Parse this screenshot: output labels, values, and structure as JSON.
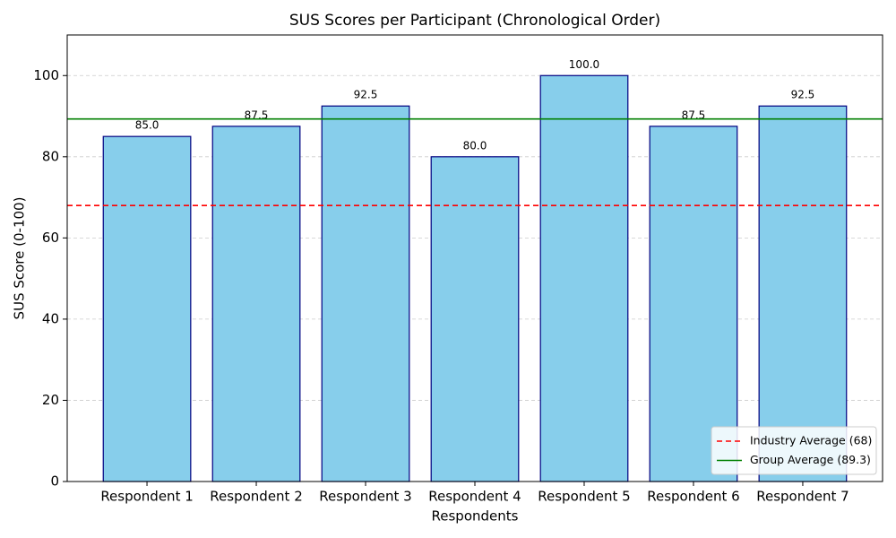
{
  "chart_data": {
    "type": "bar",
    "title": "SUS Scores per Participant (Chronological Order)",
    "x_label": "Respondents",
    "y_label": "SUS Score (0-100)",
    "categories": [
      "Respondent 1",
      "Respondent 2",
      "Respondent 3",
      "Respondent 4",
      "Respondent 5",
      "Respondent 6",
      "Respondent 7"
    ],
    "values": [
      85,
      87.5,
      92.5,
      80,
      100,
      87.5,
      92.5
    ],
    "value_labels": [
      "85.0",
      "87.5",
      "92.5",
      "80.0",
      "100.0",
      "87.5",
      "92.5"
    ],
    "color": "#87ceeb",
    "edge_color": "#000080",
    "ylim": [
      0,
      110
    ],
    "yticks": [
      0,
      20,
      40,
      60,
      80,
      100
    ],
    "grid": true,
    "reference_lines": [
      {
        "name": "Industry Average (68)",
        "value": 68,
        "color": "#ff0000",
        "style": "dashed"
      },
      {
        "name": "Group Average (89.3)",
        "value": 89.3,
        "color": "#008000",
        "style": "solid"
      }
    ],
    "legend": "lower right"
  }
}
